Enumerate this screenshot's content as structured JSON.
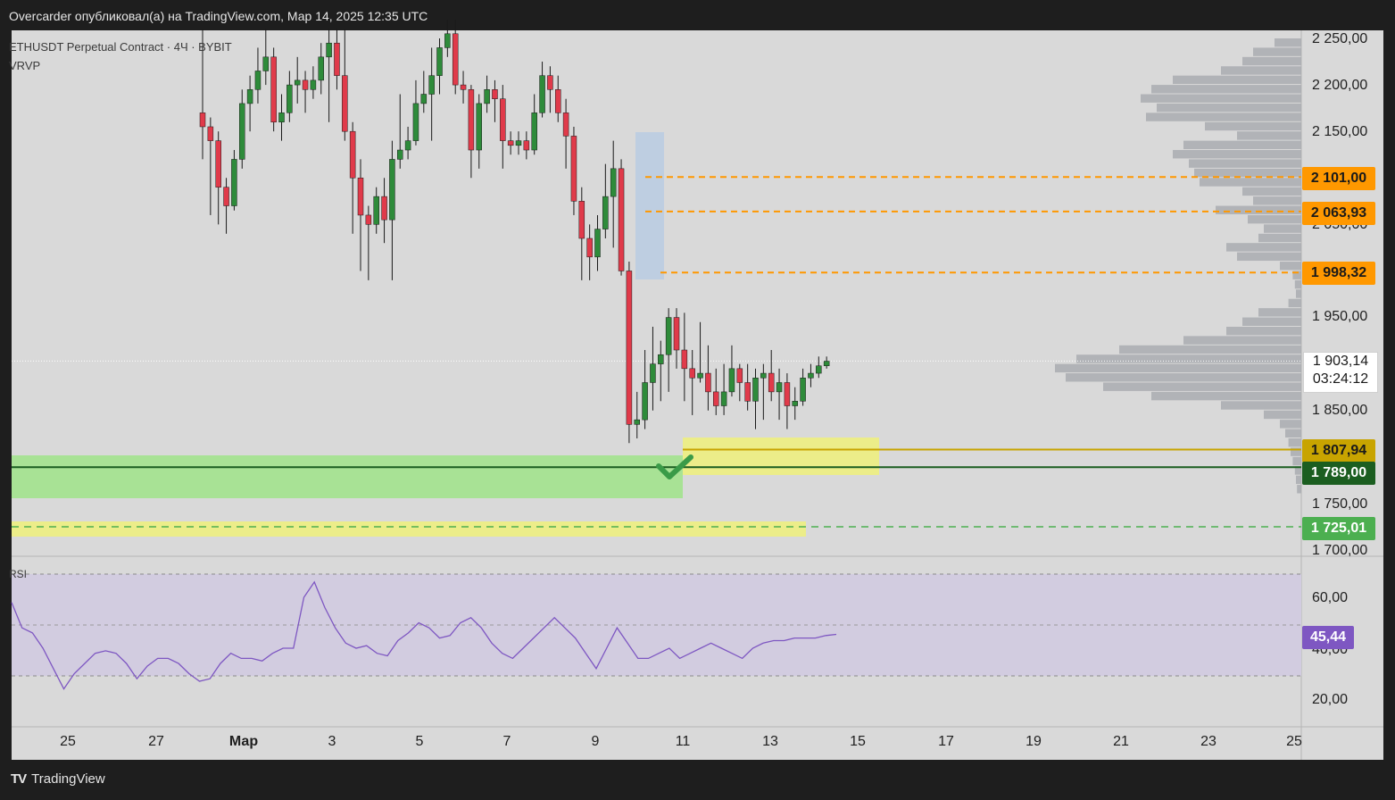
{
  "header": {
    "publisher_line": "Overcarder опубликовал(а) на TradingView.com, Мар 14, 2025 12:35 UTC"
  },
  "legend": {
    "symbol_line": "ETHUSDT Perpetual Contract · 4Ч · BYBIT",
    "indicator": "VRVP",
    "rsi_label": "RSI"
  },
  "footer": {
    "brand": "TradingView"
  },
  "colors": {
    "up": "#2e8b3a",
    "down": "#e03a4a",
    "orange": "#ff9800",
    "gold": "#c8a400",
    "green_tag": "#1b5e20",
    "green_light": "#4caf50",
    "rsi_line": "#7e57c2",
    "rsi_bg": "#d2cce0",
    "zone_green": "#a8e295",
    "zone_yellow": "#eef07a",
    "volume_bar": "#a9abb0"
  },
  "chart_data": [
    {
      "type": "candlestick",
      "title": "ETHUSDT Perpetual Contract · 4Ч · BYBIT",
      "ylim": [
        1700,
        2250
      ],
      "y_ticks": [
        "2 250,00",
        "2 200,00",
        "2 150,00",
        "2 050,00",
        "1 950,00",
        "1 850,00",
        "1 750,00",
        "1 700,00"
      ],
      "x_ticks": [
        "25",
        "27",
        "Мар",
        "3",
        "5",
        "7",
        "9",
        "11",
        "13",
        "15",
        "17",
        "19",
        "21",
        "23",
        "25"
      ],
      "current_price": "1 903,14",
      "countdown": "03:24:12",
      "levels": [
        {
          "label": "2 101,00",
          "value": 2101.0,
          "style": "orange"
        },
        {
          "label": "2 063,93",
          "value": 2063.93,
          "style": "orange"
        },
        {
          "label": "1 998,32",
          "value": 1998.32,
          "style": "orange"
        },
        {
          "label": "1 807,94",
          "value": 1807.94,
          "style": "gold"
        },
        {
          "label": "1 789,00",
          "value": 1789.0,
          "style": "green_tag"
        },
        {
          "label": "1 725,01",
          "value": 1725.01,
          "style": "green_light"
        }
      ],
      "candles": [
        [
          2170,
          2155,
          2260,
          2120
        ],
        [
          2155,
          2140,
          2165,
          2060
        ],
        [
          2140,
          2090,
          2150,
          2050
        ],
        [
          2090,
          2070,
          2100,
          2040
        ],
        [
          2070,
          2120,
          2130,
          2065
        ],
        [
          2120,
          2180,
          2195,
          2110
        ],
        [
          2180,
          2195,
          2210,
          2150
        ],
        [
          2195,
          2215,
          2240,
          2180
        ],
        [
          2215,
          2230,
          2260,
          2200
        ],
        [
          2230,
          2160,
          2240,
          2150
        ],
        [
          2160,
          2170,
          2190,
          2140
        ],
        [
          2170,
          2200,
          2215,
          2160
        ],
        [
          2200,
          2205,
          2230,
          2180
        ],
        [
          2205,
          2195,
          2215,
          2170
        ],
        [
          2195,
          2205,
          2220,
          2185
        ],
        [
          2205,
          2230,
          2245,
          2190
        ],
        [
          2230,
          2245,
          2260,
          2160
        ],
        [
          2245,
          2210,
          2260,
          2195
        ],
        [
          2210,
          2150,
          2260,
          2140
        ],
        [
          2150,
          2100,
          2160,
          2040
        ],
        [
          2100,
          2060,
          2120,
          2000
        ],
        [
          2060,
          2050,
          2070,
          1990
        ],
        [
          2050,
          2080,
          2090,
          2040
        ],
        [
          2080,
          2055,
          2100,
          2030
        ],
        [
          2055,
          2120,
          2140,
          1990
        ],
        [
          2120,
          2130,
          2190,
          2110
        ],
        [
          2130,
          2140,
          2155,
          2120
        ],
        [
          2140,
          2180,
          2205,
          2135
        ],
        [
          2180,
          2190,
          2215,
          2170
        ],
        [
          2190,
          2210,
          2240,
          2140
        ],
        [
          2210,
          2240,
          2250,
          2190
        ],
        [
          2240,
          2255,
          2270,
          2230
        ],
        [
          2255,
          2200,
          2270,
          2190
        ],
        [
          2200,
          2195,
          2215,
          2180
        ],
        [
          2195,
          2130,
          2200,
          2100
        ],
        [
          2130,
          2180,
          2190,
          2110
        ],
        [
          2180,
          2195,
          2210,
          2170
        ],
        [
          2195,
          2185,
          2205,
          2160
        ],
        [
          2185,
          2140,
          2200,
          2110
        ],
        [
          2140,
          2135,
          2150,
          2125
        ],
        [
          2135,
          2140,
          2150,
          2125
        ],
        [
          2140,
          2130,
          2150,
          2120
        ],
        [
          2130,
          2170,
          2190,
          2125
        ],
        [
          2170,
          2210,
          2225,
          2165
        ],
        [
          2210,
          2195,
          2220,
          2170
        ],
        [
          2195,
          2170,
          2210,
          2160
        ],
        [
          2170,
          2145,
          2185,
          2110
        ],
        [
          2145,
          2075,
          2155,
          2060
        ],
        [
          2075,
          2035,
          2090,
          1990
        ],
        [
          2035,
          2015,
          2050,
          1990
        ],
        [
          2015,
          2045,
          2060,
          2000
        ],
        [
          2045,
          2080,
          2115,
          2035
        ],
        [
          2080,
          2110,
          2140,
          2025
        ],
        [
          2110,
          2000,
          2120,
          1995
        ],
        [
          2000,
          1835,
          2010,
          1815
        ],
        [
          1835,
          1840,
          1870,
          1820
        ],
        [
          1840,
          1880,
          1915,
          1830
        ],
        [
          1880,
          1900,
          1940,
          1850
        ],
        [
          1900,
          1910,
          1925,
          1860
        ],
        [
          1910,
          1950,
          1960,
          1870
        ],
        [
          1950,
          1915,
          1960,
          1895
        ],
        [
          1915,
          1895,
          1955,
          1860
        ],
        [
          1895,
          1885,
          1915,
          1845
        ],
        [
          1885,
          1890,
          1945,
          1880
        ],
        [
          1890,
          1870,
          1920,
          1850
        ],
        [
          1870,
          1855,
          1895,
          1845
        ],
        [
          1855,
          1870,
          1900,
          1845
        ],
        [
          1870,
          1895,
          1920,
          1865
        ],
        [
          1895,
          1880,
          1900,
          1860
        ],
        [
          1880,
          1860,
          1900,
          1850
        ],
        [
          1860,
          1885,
          1895,
          1830
        ],
        [
          1885,
          1890,
          1900,
          1840
        ],
        [
          1890,
          1870,
          1915,
          1860
        ],
        [
          1870,
          1880,
          1895,
          1840
        ],
        [
          1880,
          1855,
          1890,
          1830
        ],
        [
          1855,
          1860,
          1875,
          1840
        ],
        [
          1860,
          1885,
          1895,
          1855
        ],
        [
          1885,
          1890,
          1900,
          1875
        ],
        [
          1890,
          1898,
          1908,
          1885
        ],
        [
          1898,
          1903,
          1908,
          1895
        ]
      ]
    },
    {
      "type": "line",
      "title": "RSI",
      "ylim": [
        15,
        72
      ],
      "y_ticks": [
        "60,00",
        "40,00",
        "20,00"
      ],
      "current_value": "45,44",
      "values": [
        58,
        48,
        46,
        40,
        32,
        24,
        30,
        34,
        38,
        39,
        38,
        34,
        28,
        33,
        36,
        36,
        34,
        30,
        27,
        28,
        34,
        38,
        36,
        36,
        35,
        38,
        40,
        40,
        60,
        66,
        56,
        48,
        42,
        40,
        41,
        38,
        37,
        43,
        46,
        50,
        48,
        44,
        45,
        50,
        52,
        48,
        42,
        38,
        36,
        40,
        44,
        48,
        52,
        48,
        44,
        38,
        32,
        40,
        48,
        42,
        36,
        36,
        38,
        40,
        36,
        38,
        40,
        42,
        40,
        38,
        36,
        40,
        42,
        43,
        43,
        44,
        44,
        44,
        45,
        45.44
      ]
    }
  ]
}
